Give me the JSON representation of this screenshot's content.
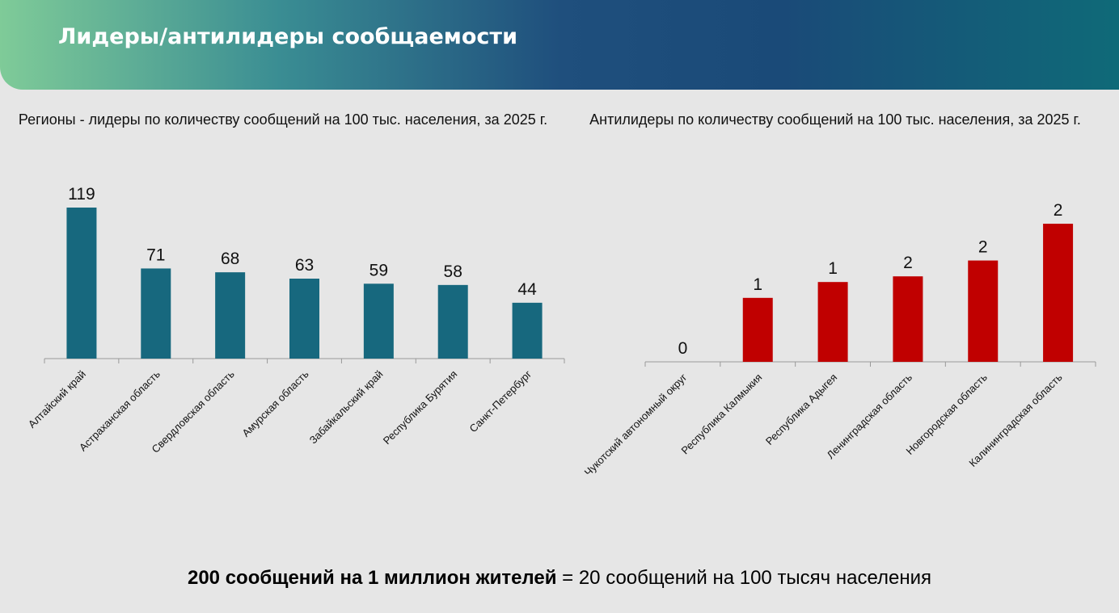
{
  "header": {
    "title": "Лидеры/антилидеры сообщаемости"
  },
  "chart_data": [
    {
      "type": "bar",
      "title": "Регионы - лидеры по количеству сообщений на 100 тыс. населения, за 2025 г.",
      "categories": [
        "Алтайский край",
        "Астраханская область",
        "Свердловская область",
        "Амурская область",
        "Забайкальский край",
        "Республика Бурятия",
        "Санкт-Петербург"
      ],
      "values": [
        119,
        71,
        68,
        63,
        59,
        58,
        44
      ],
      "color": "#17687e"
    },
    {
      "type": "bar",
      "title": "Антилидеры по количеству сообщений на 100 тыс. населения, за 2025 г.",
      "categories": [
        "Чукотский автономный округ",
        "Республика Калмыкия",
        "Республика Адыгея",
        "Ленинградская область",
        "Новгородская область",
        "Калининградская область"
      ],
      "values": [
        0,
        1.13,
        1.41,
        1.51,
        1.79,
        2.44
      ],
      "value_labels": [
        "0",
        "1",
        "1",
        "2",
        "2",
        "2"
      ],
      "color": "#c00000"
    }
  ],
  "footer": {
    "bold": "200 сообщений на 1 миллион жителей",
    "text": "= 20 сообщений на 100 тысяч населения"
  }
}
